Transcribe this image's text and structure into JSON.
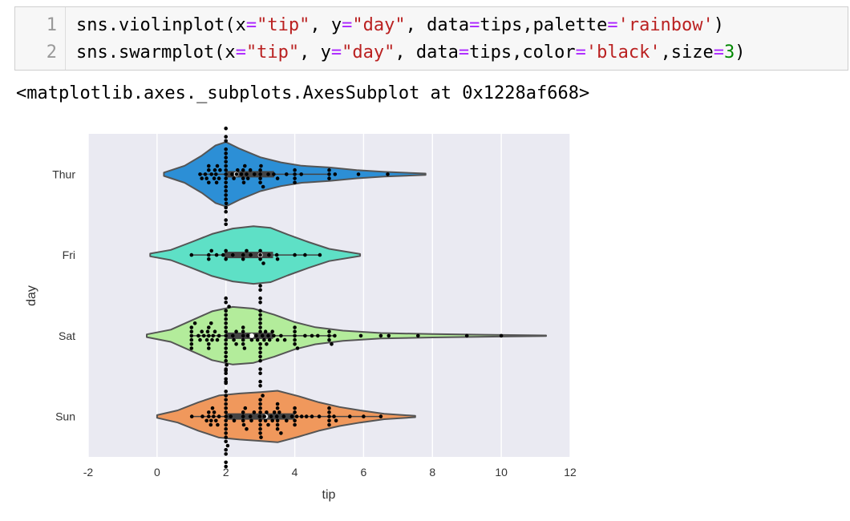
{
  "cell": {
    "lines": [
      {
        "number": "1",
        "tokens": [
          {
            "t": "sns.violinplot(x",
            "c": ""
          },
          {
            "t": "=",
            "c": "op"
          },
          {
            "t": "\"tip\"",
            "c": "str"
          },
          {
            "t": ", y",
            "c": ""
          },
          {
            "t": "=",
            "c": "op"
          },
          {
            "t": "\"day\"",
            "c": "str"
          },
          {
            "t": ", data",
            "c": ""
          },
          {
            "t": "=",
            "c": "op"
          },
          {
            "t": "tips,palette",
            "c": ""
          },
          {
            "t": "=",
            "c": "op"
          },
          {
            "t": "'rainbow'",
            "c": "str"
          },
          {
            "t": ")",
            "c": ""
          }
        ]
      },
      {
        "number": "2",
        "tokens": [
          {
            "t": "sns.swarmplot(x",
            "c": ""
          },
          {
            "t": "=",
            "c": "op"
          },
          {
            "t": "\"tip\"",
            "c": "str"
          },
          {
            "t": ", y",
            "c": ""
          },
          {
            "t": "=",
            "c": "op"
          },
          {
            "t": "\"day\"",
            "c": "str"
          },
          {
            "t": ", data",
            "c": ""
          },
          {
            "t": "=",
            "c": "op"
          },
          {
            "t": "tips,color",
            "c": ""
          },
          {
            "t": "=",
            "c": "op"
          },
          {
            "t": "'black'",
            "c": "str"
          },
          {
            "t": ",size",
            "c": ""
          },
          {
            "t": "=",
            "c": "op"
          },
          {
            "t": "3",
            "c": "num"
          },
          {
            "t": ")",
            "c": ""
          }
        ]
      }
    ]
  },
  "output": {
    "text": "<matplotlib.axes._subplots.AxesSubplot at 0x1228af668>"
  },
  "chart_data": {
    "type": "violin",
    "xlabel": "tip",
    "ylabel": "day",
    "xlim": [
      -2,
      12
    ],
    "xticks": [
      -2,
      0,
      2,
      4,
      6,
      8,
      10,
      12
    ],
    "grid": true,
    "background": "#eaeaf2",
    "categories": [
      "Thur",
      "Fri",
      "Sat",
      "Sun"
    ],
    "violins": [
      {
        "category": "Thur",
        "color": "#2c8fd6",
        "kde_min": 0.2,
        "kde_max": 7.8,
        "q1": 2.0,
        "median": 2.3,
        "q3": 3.4,
        "whisker_low": 1.25,
        "whisker_high": 5.0,
        "profile": [
          [
            0.2,
            0.05
          ],
          [
            0.8,
            0.25
          ],
          [
            1.3,
            0.55
          ],
          [
            1.7,
            0.85
          ],
          [
            2.0,
            0.95
          ],
          [
            2.4,
            0.75
          ],
          [
            3.0,
            0.5
          ],
          [
            3.6,
            0.35
          ],
          [
            4.2,
            0.25
          ],
          [
            5.0,
            0.2
          ],
          [
            5.8,
            0.12
          ],
          [
            6.6,
            0.07
          ],
          [
            7.8,
            0.02
          ]
        ],
        "points": [
          1.25,
          1.3,
          1.4,
          1.44,
          1.5,
          1.5,
          1.5,
          1.58,
          1.66,
          1.68,
          1.71,
          1.73,
          1.75,
          1.8,
          1.83,
          2.0,
          2.0,
          2.0,
          2.0,
          2.0,
          2.0,
          2.0,
          2.0,
          2.0,
          2.0,
          2.0,
          2.0,
          2.0,
          2.0,
          2.0,
          2.0,
          2.0,
          2.0,
          2.0,
          2.0,
          2.01,
          2.18,
          2.23,
          2.31,
          2.34,
          2.45,
          2.5,
          2.5,
          2.52,
          2.55,
          2.6,
          2.64,
          2.71,
          2.83,
          3.0,
          3.0,
          3.0,
          3.0,
          3.02,
          3.08,
          3.23,
          3.39,
          3.5,
          3.76,
          4.0,
          4.0,
          4.0,
          4.0,
          4.19,
          5.0,
          5.0,
          5.0,
          5.17,
          5.85,
          6.7
        ]
      },
      {
        "category": "Fri",
        "color": "#5ee0c6",
        "kde_min": -0.2,
        "kde_max": 5.9,
        "q1": 1.96,
        "median": 3.0,
        "q3": 3.37,
        "whisker_low": 1.0,
        "whisker_high": 4.73,
        "profile": [
          [
            -0.2,
            0.04
          ],
          [
            0.4,
            0.15
          ],
          [
            1.0,
            0.38
          ],
          [
            1.6,
            0.62
          ],
          [
            2.2,
            0.78
          ],
          [
            2.8,
            0.85
          ],
          [
            3.3,
            0.8
          ],
          [
            3.8,
            0.6
          ],
          [
            4.4,
            0.38
          ],
          [
            5.0,
            0.18
          ],
          [
            5.9,
            0.03
          ]
        ],
        "points": [
          1.0,
          1.5,
          1.5,
          1.58,
          1.73,
          1.92,
          2.0,
          2.0,
          2.2,
          2.5,
          2.5,
          2.6,
          2.72,
          3.0,
          3.0,
          3.0,
          3.09,
          3.25,
          3.48,
          3.5,
          4.0,
          4.3,
          4.73
        ]
      },
      {
        "category": "Sat",
        "color": "#b3ec9b",
        "kde_min": -0.3,
        "kde_max": 11.3,
        "q1": 2.0,
        "median": 2.75,
        "q3": 3.37,
        "whisker_low": 1.0,
        "whisker_high": 5.2,
        "profile": [
          [
            -0.3,
            0.04
          ],
          [
            0.4,
            0.18
          ],
          [
            1.0,
            0.45
          ],
          [
            1.6,
            0.72
          ],
          [
            2.2,
            0.85
          ],
          [
            2.8,
            0.8
          ],
          [
            3.4,
            0.62
          ],
          [
            4.0,
            0.4
          ],
          [
            4.6,
            0.25
          ],
          [
            5.4,
            0.15
          ],
          [
            6.5,
            0.08
          ],
          [
            8.0,
            0.05
          ],
          [
            9.5,
            0.03
          ],
          [
            11.3,
            0.01
          ]
        ],
        "points": [
          1.0,
          1.0,
          1.0,
          1.0,
          1.0,
          1.0,
          1.1,
          1.2,
          1.25,
          1.3,
          1.36,
          1.45,
          1.47,
          1.5,
          1.5,
          1.5,
          1.5,
          1.57,
          1.6,
          1.63,
          1.68,
          1.75,
          1.8,
          2.0,
          2.0,
          2.0,
          2.0,
          2.0,
          2.0,
          2.0,
          2.0,
          2.0,
          2.0,
          2.0,
          2.0,
          2.0,
          2.0,
          2.0,
          2.0,
          2.0,
          2.0,
          2.02,
          2.09,
          2.2,
          2.23,
          2.3,
          2.3,
          2.5,
          2.5,
          2.5,
          2.5,
          2.5,
          2.54,
          2.64,
          2.75,
          2.88,
          2.92,
          3.0,
          3.0,
          3.0,
          3.0,
          3.0,
          3.0,
          3.0,
          3.0,
          3.0,
          3.0,
          3.0,
          3.0,
          3.0,
          3.0,
          3.0,
          3.0,
          3.0,
          3.0,
          3.0,
          3.06,
          3.11,
          3.15,
          3.18,
          3.23,
          3.27,
          3.35,
          3.39,
          3.5,
          3.6,
          3.71,
          4.0,
          4.0,
          4.0,
          4.0,
          4.0,
          4.08,
          4.3,
          4.5,
          4.67,
          5.0,
          5.0,
          5.0,
          5.07,
          5.16,
          5.92,
          6.5,
          6.73,
          7.58,
          9.0,
          10.0
        ]
      },
      {
        "category": "Sun",
        "color": "#f0985c",
        "kde_min": 0.0,
        "kde_max": 7.5,
        "q1": 2.0,
        "median": 3.15,
        "q3": 4.0,
        "whisker_low": 1.01,
        "whisker_high": 6.5,
        "profile": [
          [
            0.0,
            0.04
          ],
          [
            0.6,
            0.18
          ],
          [
            1.2,
            0.42
          ],
          [
            1.8,
            0.62
          ],
          [
            2.4,
            0.68
          ],
          [
            3.0,
            0.72
          ],
          [
            3.5,
            0.76
          ],
          [
            4.1,
            0.6
          ],
          [
            4.7,
            0.42
          ],
          [
            5.3,
            0.28
          ],
          [
            5.9,
            0.18
          ],
          [
            6.6,
            0.08
          ],
          [
            7.5,
            0.02
          ]
        ],
        "points": [
          1.01,
          1.32,
          1.44,
          1.5,
          1.5,
          1.56,
          1.57,
          1.61,
          1.64,
          1.66,
          1.71,
          1.76,
          1.8,
          2.0,
          2.0,
          2.0,
          2.0,
          2.0,
          2.0,
          2.0,
          2.0,
          2.0,
          2.0,
          2.0,
          2.0,
          2.0,
          2.0,
          2.0,
          2.0,
          2.0,
          2.0,
          2.0,
          2.0,
          2.05,
          2.14,
          2.24,
          2.5,
          2.5,
          2.5,
          2.52,
          2.56,
          2.6,
          2.71,
          2.74,
          2.82,
          2.98,
          3.0,
          3.0,
          3.0,
          3.0,
          3.0,
          3.0,
          3.0,
          3.0,
          3.02,
          3.07,
          3.12,
          3.15,
          3.18,
          3.23,
          3.31,
          3.35,
          3.41,
          3.48,
          3.5,
          3.5,
          3.5,
          3.5,
          3.5,
          3.55,
          3.6,
          3.68,
          3.76,
          3.92,
          4.0,
          4.0,
          4.0,
          4.0,
          4.06,
          4.2,
          4.34,
          4.5,
          4.71,
          5.0,
          5.0,
          5.0,
          5.0,
          5.0,
          5.14,
          5.2,
          5.6,
          6.0,
          6.5
        ]
      }
    ],
    "outline_color": "#555555",
    "point_color": "#000000"
  }
}
